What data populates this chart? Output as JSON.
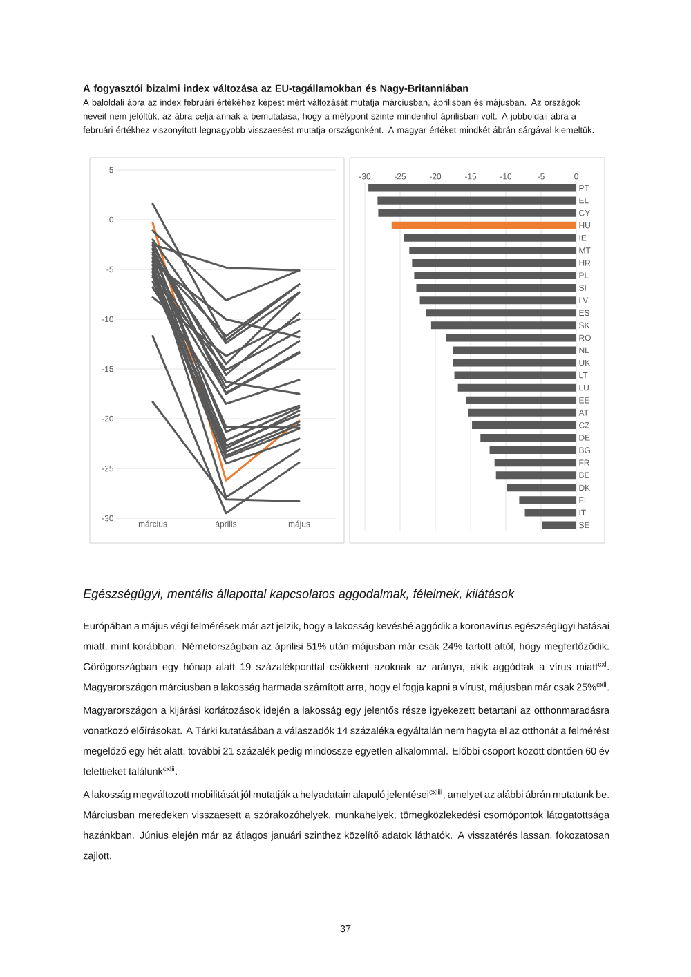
{
  "chart_data": [
    {
      "type": "line",
      "title": "A fogyasztói bizalmi index változása az EU-tagállamokban és Nagy-Britanniában",
      "subtitle": "A baloldali ábra az index februári értékéhez képest mért változását mutatja márciusban, áprilisban és májusban. Az országok neveit nem jelöltük, az ábra célja annak a bemutatása, hogy a mélypont szinte mindenhol áprilisban volt. A jobboldali ábra a februári értékhez viszonyított legnagyobb visszaesést mutatja országonként. A magyar értéket mindkét ábrán sárgával kiemeltük.",
      "categories": [
        "március",
        "április",
        "május"
      ],
      "series": [
        {
          "color": "#595959",
          "values": [
            -11.7,
            -29.5,
            -24.4
          ]
        },
        {
          "color": "#595959",
          "values": [
            -18.3,
            -28.1,
            -28.3
          ]
        },
        {
          "color": "#595959",
          "values": [
            -4.5,
            -27.9,
            -23.1
          ]
        },
        {
          "color": "#ed7d31",
          "values": [
            -0.3,
            -26.2,
            -20.2
          ]
        },
        {
          "color": "#595959",
          "values": [
            -5.6,
            -24.5,
            -22.0
          ]
        },
        {
          "color": "#595959",
          "values": [
            -5.2,
            -23.9,
            -21.0
          ]
        },
        {
          "color": "#595959",
          "values": [
            -3.8,
            -23.7,
            -20.6
          ]
        },
        {
          "color": "#595959",
          "values": [
            -6.2,
            -23.3,
            -20.3
          ]
        },
        {
          "color": "#595959",
          "values": [
            -4.9,
            -23.0,
            -19.2
          ]
        },
        {
          "color": "#595959",
          "values": [
            -2.9,
            -22.7,
            -19.6
          ]
        },
        {
          "color": "#595959",
          "values": [
            -5.3,
            -22.2,
            -18.9
          ]
        },
        {
          "color": "#595959",
          "values": [
            -3.3,
            -21.3,
            -18.7
          ]
        },
        {
          "color": "#595959",
          "values": [
            -4.2,
            -20.8,
            -20.9
          ]
        },
        {
          "color": "#595959",
          "values": [
            -6.8,
            -18.5,
            -16.1
          ]
        },
        {
          "color": "#595959",
          "values": [
            -2.3,
            -17.5,
            -13.4
          ]
        },
        {
          "color": "#595959",
          "values": [
            -5.0,
            -17.4,
            -13.3
          ]
        },
        {
          "color": "#595959",
          "values": [
            -3.0,
            -16.9,
            -12.2
          ]
        },
        {
          "color": "#595959",
          "values": [
            -4.6,
            -16.3,
            -17.5
          ]
        },
        {
          "color": "#595959",
          "values": [
            -2.6,
            -15.6,
            -9.4
          ]
        },
        {
          "color": "#595959",
          "values": [
            -5.8,
            -15.1,
            -11.2
          ]
        },
        {
          "color": "#595959",
          "values": [
            -3.5,
            -14.5,
            -7.3
          ]
        },
        {
          "color": "#595959",
          "values": [
            -7.8,
            -13.7,
            -10.0
          ]
        },
        {
          "color": "#595959",
          "values": [
            -2.0,
            -12.4,
            -7.3
          ]
        },
        {
          "color": "#595959",
          "values": [
            1.6,
            -12.1,
            -6.5
          ]
        },
        {
          "color": "#595959",
          "values": [
            -3.9,
            -11.7,
            -6.5
          ]
        },
        {
          "color": "#595959",
          "values": [
            -4.3,
            -10.0,
            -11.8
          ]
        },
        {
          "color": "#595959",
          "values": [
            -1.1,
            -8.1,
            -5.1
          ]
        },
        {
          "color": "#595959",
          "values": [
            -2.5,
            -4.8,
            -5.1
          ]
        }
      ],
      "ylim": [
        -30,
        5
      ],
      "yticks": [
        -30,
        -25,
        -20,
        -15,
        -10,
        -5,
        0,
        5
      ],
      "grid": "y"
    },
    {
      "type": "bar",
      "orientation": "horizontal",
      "categories": [
        "PT",
        "EL",
        "CY",
        "HU",
        "IE",
        "MT",
        "HR",
        "PL",
        "SI",
        "LV",
        "ES",
        "SK",
        "RO",
        "NL",
        "UK",
        "LT",
        "LU",
        "EE",
        "AT",
        "CZ",
        "DE",
        "BG",
        "FR",
        "BE",
        "DK",
        "FI",
        "IT",
        "SE"
      ],
      "values": [
        -29.5,
        -28.2,
        -28.1,
        -26.2,
        -24.5,
        -23.7,
        -23.3,
        -23.0,
        -22.7,
        -22.2,
        -21.3,
        -20.6,
        -18.5,
        -17.5,
        -17.5,
        -17.3,
        -16.8,
        -15.6,
        -15.3,
        -14.8,
        -13.6,
        -12.3,
        -11.6,
        -11.4,
        -9.9,
        -8.1,
        -7.3,
        -4.9
      ],
      "colors": [
        "#595959",
        "#595959",
        "#595959",
        "#ed7d31",
        "#595959",
        "#595959",
        "#595959",
        "#595959",
        "#595959",
        "#595959",
        "#595959",
        "#595959",
        "#595959",
        "#595959",
        "#595959",
        "#595959",
        "#595959",
        "#595959",
        "#595959",
        "#595959",
        "#595959",
        "#595959",
        "#595959",
        "#595959",
        "#595959",
        "#595959",
        "#595959",
        "#595959"
      ],
      "xlim": [
        -30,
        0
      ],
      "xticks": [
        -30,
        -25,
        -20,
        -15,
        -10,
        -5,
        0
      ],
      "grid": "x",
      "annotations": [
        "Egészségügyi, mentális állapottal kapcsolatos aggodalmak, félelmek, kilátások",
        "Európában a május végi felmérések már azt jelzik, hogy a lakosság kevésbé aggódik a koronavírus egészségügyi hatásai miatt, mint korábban. Németországban az áprilisi 51% után májusban már csak 24% tartott attól, hogy megfertőződik. Görögországban egy hónap alatt 19 százalékponttal csökkent azoknak az aránya, akik aggódtak a vírus miatt$^{cxl}$. Magyarországon márciusban a lakosság harmada számított arra, hogy el fogja kapni a vírust, májusban már csak 25%$^{cxli}$.",
        "Magyarországon a kijárási korlátozások idején a lakosság egy jelentős része igyekezett betartani az otthonmaradásra vonatkozó előírásokat. A Tárki kutatásában a válaszadók 14 százaléka egyáltalán nem hagyta el az otthonát a felmérést megelőző egy hét alatt, további 21 százalék pedig mindössze egyetlen alkalommal. Előbbi csoport között döntően 60 év felettieket találunk$^{cxlii}$.",
        "A lakosság megváltozott mobilitását jól mutatják a helyadatain alapuló jelentései$^{cxliii}$, amelyet az alábbi ábrán mutatunk be. Márciusban meredeken visszaesett a szórakozóhelyek, munkahelyek, tömegközlekedési csomópontok látogatottsága hazánkban. Június elején már az átlagos januári szinthez közelítő adatok láthatók. A visszatérés lassan, fokozatosan zajlott.",
        "37"
      ]
    }
  ]
}
